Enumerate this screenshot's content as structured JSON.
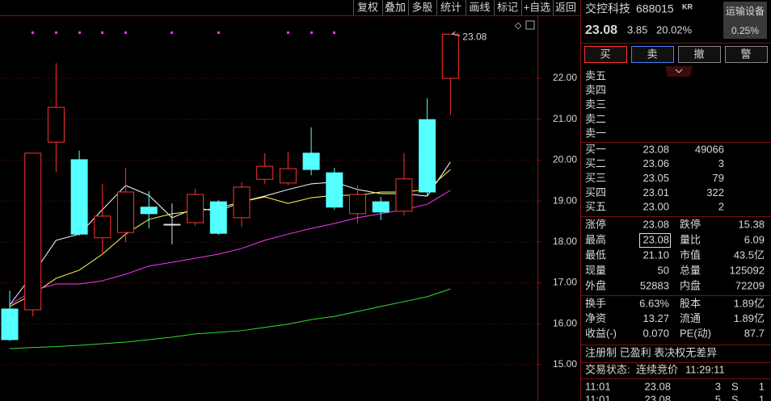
{
  "toolbar": [
    "复权",
    "叠加",
    "多股",
    "统计",
    "画线",
    "标记",
    "+自选",
    "返回"
  ],
  "chart_data": {
    "type": "candlestick",
    "open": [
      16.36,
      16.34,
      20.44,
      20.01,
      18.1,
      18.23,
      18.85,
      18.43,
      18.47,
      18.98,
      18.59,
      19.53,
      19.44,
      20.17,
      19.69,
      18.69,
      18.98,
      18.75,
      20.99,
      22.0
    ],
    "high": [
      16.81,
      20.17,
      22.37,
      20.23,
      19.42,
      19.81,
      19.24,
      18.94,
      19.3,
      19.02,
      19.46,
      20.17,
      20.21,
      20.8,
      19.81,
      19.38,
      19.1,
      20.17,
      21.51,
      23.08
    ],
    "low": [
      15.58,
      16.18,
      19.71,
      18.15,
      17.7,
      18.0,
      18.33,
      17.94,
      18.39,
      18.17,
      18.37,
      19.42,
      19.38,
      19.63,
      18.79,
      18.45,
      18.53,
      18.65,
      19.12,
      21.1
    ],
    "close": [
      15.61,
      20.17,
      21.29,
      18.19,
      18.63,
      19.22,
      18.69,
      18.43,
      19.16,
      18.21,
      19.34,
      19.85,
      19.79,
      19.77,
      18.85,
      19.16,
      18.73,
      19.54,
      19.22,
      23.08
    ],
    "up_color": "#ff3232",
    "down_color": "#54ffff",
    "flat_color": "#e0e0e0",
    "series": [
      {
        "color": "#ffffff",
        "values": [
          16.46,
          17.21,
          18.04,
          18.19,
          18.79,
          19.38,
          19.14,
          18.59,
          18.83,
          18.75,
          18.98,
          19.12,
          19.28,
          19.42,
          19.46,
          19.28,
          19.18,
          19.18,
          19.12,
          19.95
        ]
      },
      {
        "color": "#ffff55",
        "values": [
          16.42,
          16.72,
          17.11,
          17.31,
          17.7,
          18.19,
          18.55,
          18.69,
          18.75,
          18.83,
          18.98,
          19.1,
          18.94,
          19.08,
          19.14,
          19.14,
          19.22,
          19.22,
          19.28,
          19.77
        ]
      },
      {
        "color": "#ff33ff",
        "values": [
          16.46,
          16.81,
          16.97,
          16.97,
          17.05,
          17.21,
          17.41,
          17.5,
          17.6,
          17.7,
          17.84,
          18.04,
          18.19,
          18.33,
          18.45,
          18.59,
          18.69,
          18.79,
          18.92,
          19.26
        ]
      },
      {
        "color": "#33dd33",
        "values": [
          15.39,
          15.42,
          15.44,
          15.47,
          15.51,
          15.55,
          15.61,
          15.67,
          15.75,
          15.79,
          15.83,
          15.91,
          15.99,
          16.1,
          16.18,
          16.3,
          16.42,
          16.54,
          16.66,
          16.85
        ]
      }
    ],
    "ylim": [
      14.11,
      23.52
    ],
    "yticks": [
      {
        "value": 15,
        "label": "15.00"
      },
      {
        "value": 16,
        "label": "16.00"
      },
      {
        "value": 17,
        "label": "17.00"
      },
      {
        "value": 18,
        "label": "18.00"
      },
      {
        "value": 19,
        "label": "19.00"
      },
      {
        "value": 20,
        "label": "20.00"
      },
      {
        "value": 21,
        "label": "21.00"
      },
      {
        "value": 22,
        "label": "22.00"
      }
    ],
    "grid": true,
    "annotation": "23.08"
  },
  "stock": {
    "name": "交控科技",
    "code": "688015",
    "tag": "KR",
    "sector": "运输设备",
    "price": "23.08",
    "change": "3.85",
    "change_pct": "20.02%",
    "sector_change": "0.25%"
  },
  "buttons": [
    "买",
    "卖",
    "撤",
    "警"
  ],
  "asks": [
    "卖五",
    "卖四",
    "卖三",
    "卖二",
    "卖一"
  ],
  "bids": [
    [
      "买一",
      "23.08",
      "49066"
    ],
    [
      "买二",
      "23.06",
      "3"
    ],
    [
      "买三",
      "23.05",
      "79"
    ],
    [
      "买四",
      "23.01",
      "322"
    ],
    [
      "买五",
      "23.00",
      "2"
    ]
  ],
  "stats": [
    [
      "涨停",
      "23.08",
      "跌停",
      "15.38"
    ],
    [
      "最高",
      "23.08",
      "量比",
      "6.09"
    ],
    [
      "最低",
      "21.10",
      "市值",
      "43.5亿"
    ],
    [
      "现量",
      "50",
      "总量",
      "125092"
    ],
    [
      "外盘",
      "52883",
      "内盘",
      "72209"
    ]
  ],
  "stats2": [
    [
      "换手",
      "6.63%",
      "股本",
      "1.89亿"
    ],
    [
      "净资",
      "13.27",
      "流通",
      "1.89亿"
    ],
    [
      "收益(-)",
      "0.070",
      "PE(动)",
      "87.7"
    ]
  ],
  "tags": "注册制 已盈利 表决权无差异",
  "status": {
    "label": "交易状态:",
    "state": "连续竞价",
    "time": "11:29:11"
  },
  "ticks": [
    [
      "11:01",
      "23.08",
      "3",
      "S",
      "1"
    ],
    [
      "11:01",
      "23.08",
      "5",
      "S",
      "1"
    ]
  ]
}
